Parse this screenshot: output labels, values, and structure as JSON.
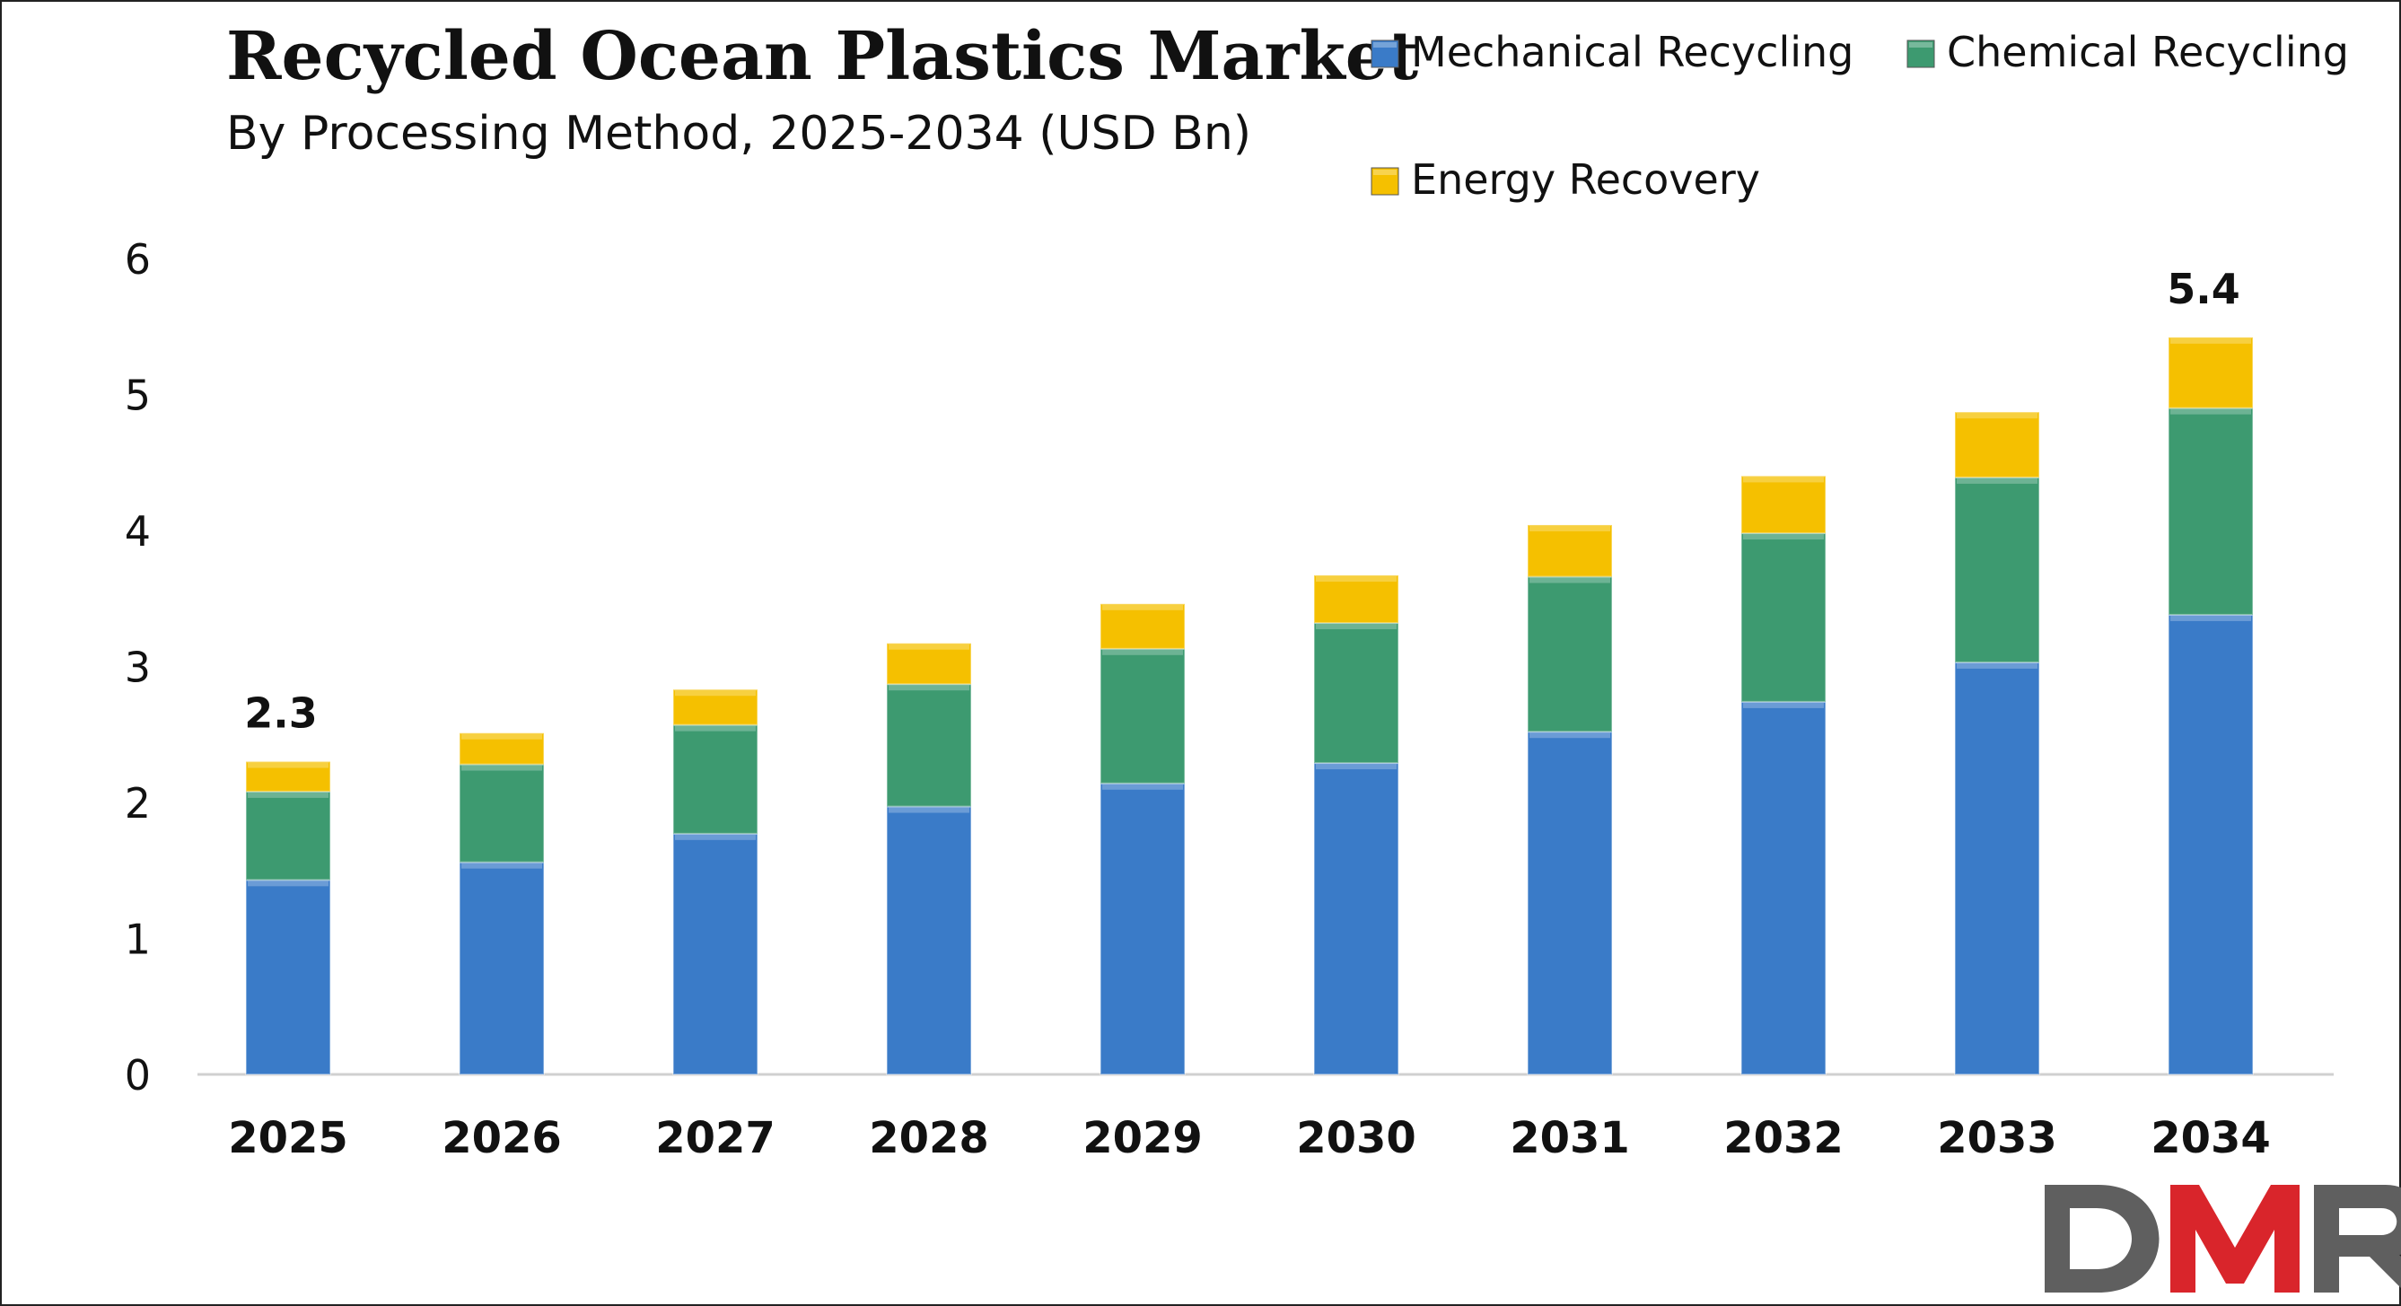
{
  "chart_data": {
    "type": "bar",
    "stacked": true,
    "title": "Recycled Ocean Plastics Market",
    "subtitle": "By Processing Method, 2025-2034 (USD Bn)",
    "categories": [
      "2025",
      "2026",
      "2027",
      "2028",
      "2029",
      "2030",
      "2031",
      "2032",
      "2033",
      "2034"
    ],
    "series": [
      {
        "name": "Mechanical Recycling",
        "color": "#3a7bc8",
        "values": [
          1.43,
          1.56,
          1.77,
          1.97,
          2.14,
          2.29,
          2.52,
          2.74,
          3.03,
          3.38
        ]
      },
      {
        "name": "Chemical Recycling",
        "color": "#3d9a70",
        "values": [
          0.65,
          0.72,
          0.8,
          0.9,
          0.99,
          1.03,
          1.14,
          1.24,
          1.36,
          1.52
        ]
      },
      {
        "name": "Energy Recovery",
        "color": "#f5c000",
        "values": [
          0.22,
          0.23,
          0.26,
          0.3,
          0.33,
          0.35,
          0.38,
          0.42,
          0.48,
          0.52
        ]
      }
    ],
    "total_labels": [
      {
        "category": "2025",
        "text": "2.3"
      },
      {
        "category": "2034",
        "text": "5.4"
      }
    ],
    "ylim": [
      0,
      6
    ],
    "yticks": [
      "0",
      "1",
      "2",
      "3",
      "4",
      "5",
      "6"
    ],
    "xlabel": "",
    "ylabel": "",
    "grid": false,
    "legend_position": "top-right"
  },
  "logo": {
    "text": "DMR",
    "color_dark": "#5f5f5f",
    "color_accent": "#d9252b"
  },
  "colors": {
    "axis": "#d0d0d0",
    "text": "#111111",
    "border": "#222222"
  }
}
